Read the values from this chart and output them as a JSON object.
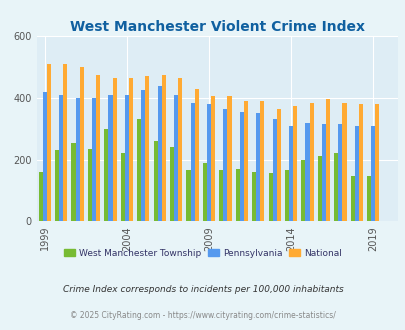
{
  "title": "West Manchester Violent Crime Index",
  "title_color": "#1060a0",
  "years": [
    1999,
    2000,
    2001,
    2002,
    2003,
    2004,
    2005,
    2006,
    2007,
    2008,
    2009,
    2010,
    2011,
    2012,
    2013,
    2014,
    2015,
    2016,
    2017,
    2018,
    2019,
    2020
  ],
  "west_manchester": [
    160,
    230,
    255,
    235,
    300,
    220,
    330,
    260,
    240,
    165,
    190,
    165,
    170,
    160,
    155,
    165,
    200,
    210,
    220,
    145,
    145,
    0
  ],
  "pennsylvania": [
    420,
    410,
    400,
    400,
    410,
    410,
    425,
    440,
    410,
    385,
    380,
    365,
    355,
    350,
    330,
    310,
    320,
    315,
    315,
    310,
    310,
    0
  ],
  "national": [
    510,
    510,
    500,
    475,
    465,
    465,
    470,
    475,
    465,
    430,
    405,
    405,
    390,
    390,
    365,
    375,
    385,
    395,
    385,
    380,
    380,
    0
  ],
  "wm_color": "#77bb33",
  "pa_color": "#5599ee",
  "nat_color": "#ffaa33",
  "bg_color": "#e8f4f8",
  "plot_bg": "#deedf5",
  "ylim": [
    0,
    600
  ],
  "yticks": [
    0,
    200,
    400,
    600
  ],
  "bar_width": 0.25,
  "legend_labels": [
    "West Manchester Township",
    "Pennsylvania",
    "National"
  ],
  "footnote1": "Crime Index corresponds to incidents per 100,000 inhabitants",
  "footnote2": "© 2025 CityRating.com - https://www.cityrating.com/crime-statistics/",
  "footnote1_color": "#333333",
  "footnote2_color": "#888888",
  "labeled_years": [
    1999,
    2004,
    2009,
    2014,
    2019
  ]
}
